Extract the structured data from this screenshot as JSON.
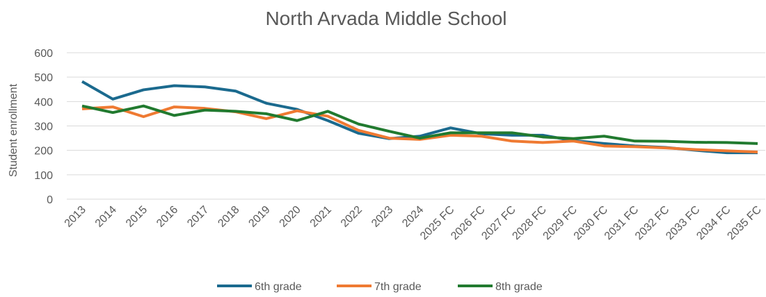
{
  "chart_data": {
    "type": "line",
    "title": "North Arvada Middle School",
    "y_label": "Student enrollment",
    "categories": [
      "2013",
      "2014",
      "2015",
      "2016",
      "2017",
      "2018",
      "2019",
      "2020",
      "2021",
      "2022",
      "2023",
      "2024",
      "2025 FC",
      "2026 FC",
      "2027 FC",
      "2028 FC",
      "2029 FC",
      "2030 FC",
      "2031 FC",
      "2032 FC",
      "2033 FC",
      "2034 FC",
      "2035 FC"
    ],
    "series": [
      {
        "name": "6th grade",
        "color": "#1b6a8e",
        "values": [
          482,
          410,
          448,
          465,
          460,
          443,
          393,
          368,
          322,
          270,
          248,
          258,
          292,
          268,
          262,
          262,
          240,
          228,
          218,
          212,
          200,
          190,
          190
        ]
      },
      {
        "name": "7th grade",
        "color": "#ef7a32",
        "values": [
          370,
          378,
          338,
          378,
          372,
          358,
          330,
          362,
          340,
          282,
          250,
          245,
          262,
          258,
          238,
          232,
          238,
          218,
          215,
          210,
          203,
          198,
          193
        ]
      },
      {
        "name": "8th grade",
        "color": "#217a2f",
        "values": [
          382,
          355,
          382,
          343,
          365,
          360,
          350,
          322,
          360,
          308,
          278,
          250,
          272,
          272,
          272,
          255,
          248,
          258,
          238,
          237,
          233,
          232,
          228
        ]
      }
    ],
    "ylim": [
      0,
      600
    ],
    "yticks": [
      0,
      100,
      200,
      300,
      400,
      500,
      600
    ],
    "grid": true,
    "legend": "bottom"
  }
}
